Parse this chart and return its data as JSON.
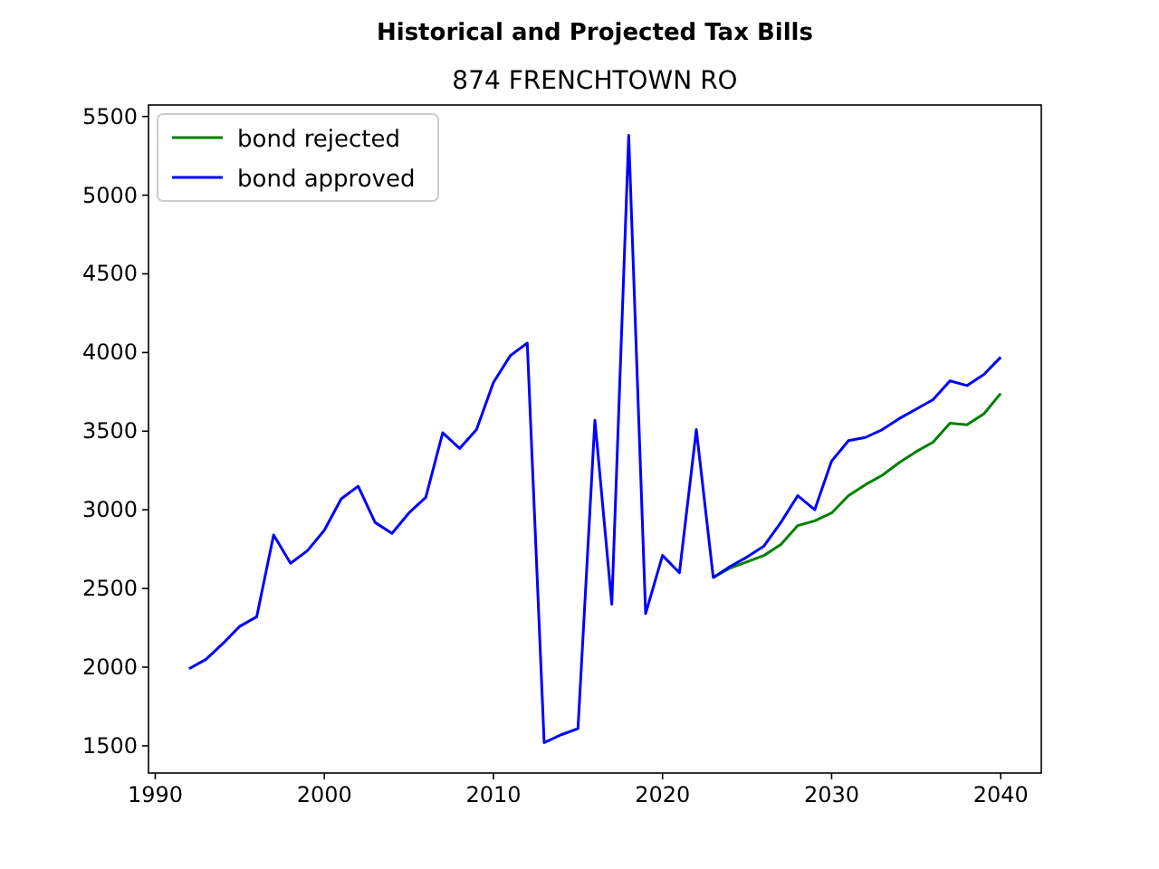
{
  "chart_data": {
    "type": "line",
    "title": "Historical and Projected Tax Bills",
    "subtitle": "874 FRENCHTOWN RO",
    "xlim": [
      1989.6,
      2042.4
    ],
    "xticks": [
      1990,
      2000,
      2010,
      2020,
      2030,
      2040
    ],
    "ylim": [
      1327,
      5573
    ],
    "yticks": [
      1500,
      2000,
      2500,
      3000,
      3500,
      4000,
      4500,
      5000,
      5500
    ],
    "grid": false,
    "legend": "top left",
    "series": [
      {
        "name": "bond rejected",
        "color": "#008000",
        "x": [
          2023,
          2024,
          2025,
          2026,
          2027,
          2028,
          2029,
          2030,
          2031,
          2032,
          2033,
          2034,
          2035,
          2036,
          2037,
          2038,
          2039,
          2040
        ],
        "values": [
          2570,
          2630,
          2670,
          2710,
          2780,
          2900,
          2930,
          2980,
          3090,
          3160,
          3220,
          3300,
          3370,
          3430,
          3550,
          3540,
          3610,
          3740
        ]
      },
      {
        "name": "bond approved",
        "color": "#0000ff",
        "x": [
          1992,
          1993,
          1994,
          1995,
          1996,
          1997,
          1998,
          1999,
          2000,
          2001,
          2002,
          2003,
          2004,
          2005,
          2006,
          2007,
          2008,
          2009,
          2010,
          2011,
          2012,
          2013,
          2014,
          2015,
          2016,
          2017,
          2018,
          2019,
          2020,
          2021,
          2022,
          2023,
          2024,
          2025,
          2026,
          2027,
          2028,
          2029,
          2030,
          2031,
          2032,
          2033,
          2034,
          2035,
          2036,
          2037,
          2038,
          2039,
          2040
        ],
        "values": [
          1990,
          2050,
          2150,
          2260,
          2320,
          2840,
          2660,
          2740,
          2870,
          3070,
          3150,
          2920,
          2850,
          2980,
          3080,
          3490,
          3390,
          3510,
          3810,
          3980,
          4060,
          1520,
          1570,
          1610,
          3570,
          2400,
          5380,
          2340,
          2710,
          2600,
          3510,
          2570,
          2640,
          2700,
          2770,
          2920,
          3090,
          3000,
          3310,
          3440,
          3460,
          3510,
          3580,
          3640,
          3700,
          3820,
          3790,
          3860,
          3970
        ]
      }
    ]
  }
}
